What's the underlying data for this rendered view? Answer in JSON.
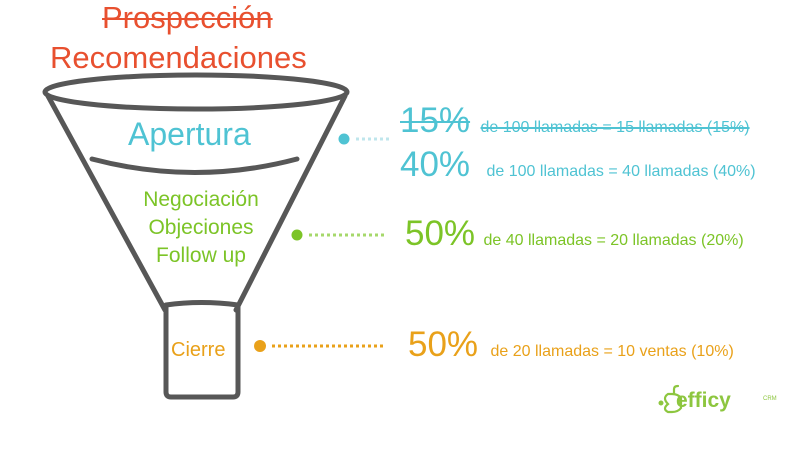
{
  "funnel": {
    "title_struck": "Prospección",
    "title": "Recomendaciones",
    "stages": {
      "apertura": "Apertura",
      "negociacion": [
        "Negociación",
        "Objeciones",
        "Follow up"
      ],
      "cierre": "Cierre"
    }
  },
  "metrics": [
    {
      "pct": "15%",
      "desc": "de 100 llamadas = 15 llamadas (15%)",
      "struck": true,
      "color": "#4fc3d3"
    },
    {
      "pct": "40%",
      "desc": "de 100 llamadas = 40 llamadas (40%)",
      "struck": false,
      "color": "#4fc3d3"
    },
    {
      "pct": "50%",
      "desc": "de  40 llamadas = 20 llamadas (20%)",
      "struck": false,
      "color": "#7cc427"
    },
    {
      "pct": "50%",
      "desc": "de 20 llamadas = 10 ventas (10%)",
      "struck": false,
      "color": "#e9a11a"
    }
  ],
  "logo": {
    "text": "efficy",
    "sup": "CRM",
    "icon": "submarine-icon"
  },
  "colors": {
    "title": "#e8502f",
    "cyan": "#4fc3d3",
    "green": "#7cc427",
    "orange": "#e9a11a",
    "funnel_stroke": "#555555"
  }
}
